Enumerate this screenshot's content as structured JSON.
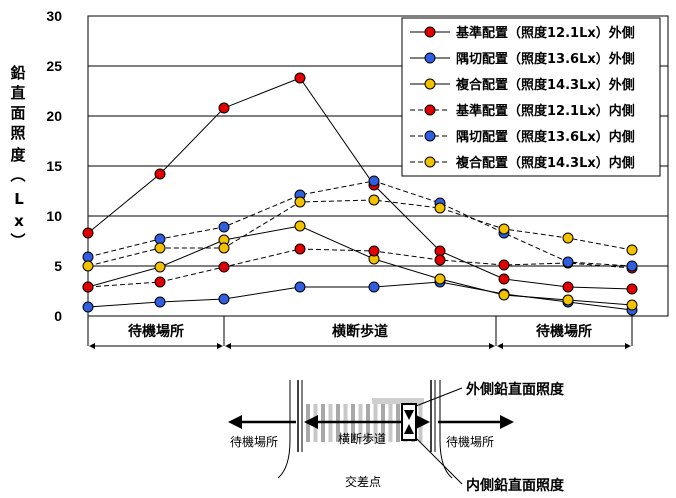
{
  "chart_data": {
    "type": "line",
    "ylabel": "鉛直面照度（Lx）",
    "ylim": [
      0,
      30
    ],
    "yticks": [
      0,
      5,
      10,
      15,
      20,
      25,
      30
    ],
    "grid": "horizontal",
    "legend_position": "top-right",
    "x": [
      1,
      2,
      3,
      4,
      5,
      6,
      7,
      8,
      9
    ],
    "series": [
      {
        "name": "基準配置（照度12.1Lx）外側",
        "color": "#e00000",
        "dash": false,
        "values": [
          8.3,
          14.2,
          20.8,
          23.8,
          13.1,
          6.5,
          3.7,
          2.9,
          2.7
        ]
      },
      {
        "name": "隅切配置（照度13.6Lx）外側",
        "color": "#2f5fe0",
        "dash": false,
        "values": [
          0.9,
          1.4,
          1.7,
          2.9,
          2.9,
          3.4,
          2.2,
          1.4,
          0.6
        ]
      },
      {
        "name": "複合配置（照度14.3Lx）外側",
        "color": "#f2c200",
        "dash": false,
        "values": [
          2.9,
          4.9,
          7.6,
          9.0,
          5.7,
          3.7,
          2.1,
          1.6,
          1.1
        ]
      },
      {
        "name": "基準配置（照度12.1Lx）内側",
        "color": "#e00000",
        "dash": true,
        "values": [
          2.9,
          3.4,
          4.9,
          6.7,
          6.5,
          5.6,
          5.1,
          5.3,
          4.8
        ]
      },
      {
        "name": "隅切配置（照度13.6Lx）内側",
        "color": "#2f5fe0",
        "dash": true,
        "values": [
          5.9,
          7.7,
          8.9,
          12.1,
          13.5,
          11.3,
          8.3,
          5.4,
          5.0
        ]
      },
      {
        "name": "複合配置（照度14.3Lx）内側",
        "color": "#f2c200",
        "dash": true,
        "values": [
          5.0,
          6.8,
          6.8,
          11.4,
          11.6,
          10.8,
          8.7,
          7.8,
          6.6
        ]
      }
    ],
    "regions": [
      "待機場所",
      "横断歩道",
      "待機場所"
    ]
  },
  "diagram": {
    "outer_label": "外側鉛直面照度",
    "inner_label": "内側鉛直面照度",
    "crossing_label": "横断歩道",
    "left_wait_label": "待機場所",
    "right_wait_label": "待機場所",
    "intersection_label": "交差点"
  }
}
